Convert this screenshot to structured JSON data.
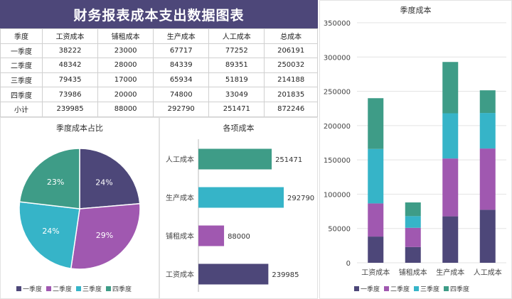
{
  "title": "财务报表成本支出数据图表",
  "table": {
    "headers": [
      "季度",
      "工资成本",
      "铺租成本",
      "生产成本",
      "人工成本",
      "总成本"
    ],
    "rows": [
      [
        "一季度",
        "38222",
        "23000",
        "67717",
        "77252",
        "206191"
      ],
      [
        "二季度",
        "48342",
        "28000",
        "84339",
        "89351",
        "250032"
      ],
      [
        "三季度",
        "79435",
        "17000",
        "65934",
        "51819",
        "214188"
      ],
      [
        "四季度",
        "73986",
        "20000",
        "74800",
        "33049",
        "201835"
      ],
      [
        "小计",
        "239985",
        "88000",
        "292790",
        "251471",
        "872246"
      ]
    ]
  },
  "colors": {
    "q1": "#4d4779",
    "q2": "#a058b0",
    "q3": "#36b4c8",
    "q4": "#3e9c87",
    "header": "#4d4779"
  },
  "chart_data": [
    {
      "type": "pie",
      "title": "季度成本占比",
      "labels": [
        "一季度",
        "二季度",
        "三季度",
        "四季度"
      ],
      "values": [
        206191,
        250032,
        214188,
        201835
      ],
      "data_labels": [
        "24%",
        "29%",
        "24%",
        "23%"
      ],
      "legend": "bottom"
    },
    {
      "type": "bar",
      "orientation": "horizontal",
      "title": "各项成本",
      "categories": [
        "人工成本",
        "生产成本",
        "铺租成本",
        "工资成本"
      ],
      "values": [
        251471,
        292790,
        88000,
        239985
      ],
      "data_labels": [
        "251471",
        "292790",
        "88000",
        "239985"
      ],
      "bar_colors": [
        "#3e9c87",
        "#36b4c8",
        "#a058b0",
        "#4d4779"
      ]
    },
    {
      "type": "bar",
      "stacked": true,
      "title": "季度成本",
      "categories": [
        "工资成本",
        "铺租成本",
        "生产成本",
        "人工成本"
      ],
      "series": [
        {
          "name": "一季度",
          "values": [
            38222,
            23000,
            67717,
            77252
          ]
        },
        {
          "name": "二季度",
          "values": [
            48342,
            28000,
            84339,
            89351
          ]
        },
        {
          "name": "三季度",
          "values": [
            79435,
            17000,
            65934,
            51819
          ]
        },
        {
          "name": "四季度",
          "values": [
            73986,
            20000,
            74800,
            33049
          ]
        }
      ],
      "ylim": [
        0,
        350000
      ],
      "yticks": [
        "0",
        "50000",
        "100000",
        "150000",
        "200000",
        "250000",
        "300000",
        "350000"
      ],
      "grid": true,
      "legend": "bottom"
    }
  ]
}
